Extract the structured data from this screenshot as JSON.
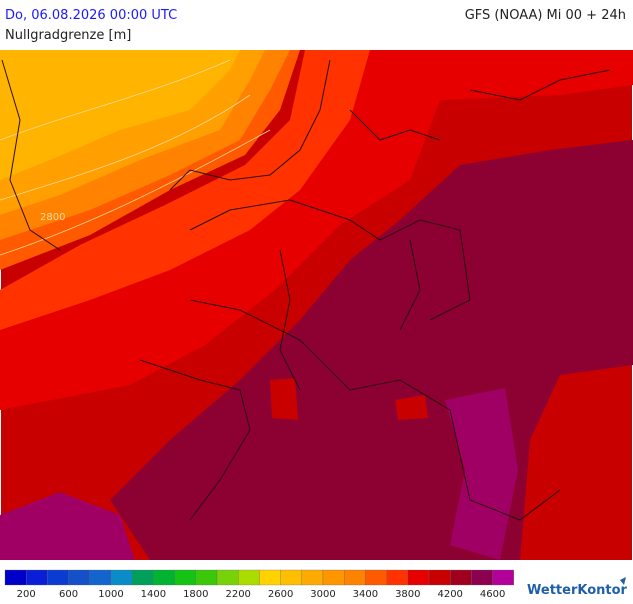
{
  "header": {
    "date": "Do, 06.08.2026 00:00 UTC",
    "model": "GFS (NOAA) Mi 00 + 24h",
    "parameter": "Nullgradgrenze [m]"
  },
  "map": {
    "contour_label": "2800"
  },
  "legend": {
    "colors": [
      "#0000c8",
      "#0a1ed7",
      "#0a3cd2",
      "#1450c8",
      "#1464cd",
      "#0a8cc8",
      "#00a05a",
      "#00b432",
      "#14c314",
      "#3cc80a",
      "#78d20a",
      "#aadc00",
      "#ffd200",
      "#ffbe00",
      "#ffaa00",
      "#ff9600",
      "#ff8200",
      "#ff5a00",
      "#ff3200",
      "#e60000",
      "#c80000",
      "#a0001e",
      "#8c0050",
      "#b4009b"
    ],
    "ticks": [
      200,
      600,
      1000,
      1400,
      1800,
      2200,
      2600,
      3000,
      3400,
      3800,
      4200,
      4600
    ]
  },
  "logo": {
    "text": "WetterKontor"
  }
}
